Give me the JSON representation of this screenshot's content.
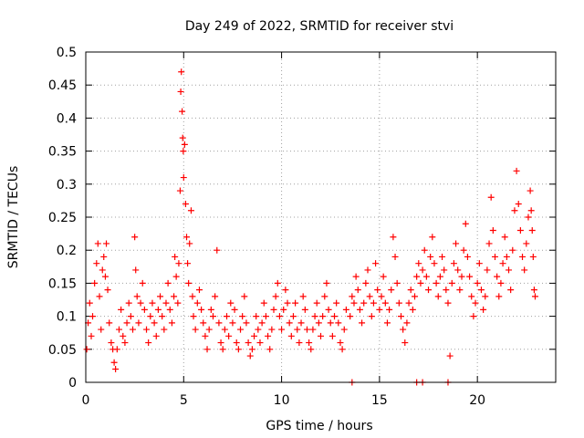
{
  "chart_data": {
    "type": "scatter",
    "title": "Day 249 of 2022, SRMTID for receiver stvi",
    "xlabel": "GPS time / hours",
    "ylabel": "SRMTID / TECUs",
    "xlim": [
      0,
      24
    ],
    "ylim": [
      0,
      0.5
    ],
    "grid": true,
    "marker": "plus",
    "series_color": "#ff0000",
    "x_ticks": [
      {
        "value": 0,
        "label": "0"
      },
      {
        "value": 5,
        "label": "5"
      },
      {
        "value": 10,
        "label": "10"
      },
      {
        "value": 15,
        "label": "15"
      },
      {
        "value": 20,
        "label": "20"
      }
    ],
    "y_ticks": [
      {
        "value": 0,
        "label": "0"
      },
      {
        "value": 0.05,
        "label": "0.05"
      },
      {
        "value": 0.1,
        "label": "0.1"
      },
      {
        "value": 0.15,
        "label": "0.15"
      },
      {
        "value": 0.2,
        "label": "0.2"
      },
      {
        "value": 0.25,
        "label": "0.25"
      },
      {
        "value": 0.3,
        "label": "0.3"
      },
      {
        "value": 0.35,
        "label": "0.35"
      },
      {
        "value": 0.4,
        "label": "0.4"
      },
      {
        "value": 0.45,
        "label": "0.45"
      },
      {
        "value": 0.5,
        "label": "0.5"
      }
    ],
    "points": [
      [
        0.05,
        0.05
      ],
      [
        0.12,
        0.09
      ],
      [
        0.2,
        0.12
      ],
      [
        0.28,
        0.07
      ],
      [
        0.35,
        0.1
      ],
      [
        0.45,
        0.15
      ],
      [
        0.55,
        0.18
      ],
      [
        0.62,
        0.21
      ],
      [
        0.7,
        0.13
      ],
      [
        0.78,
        0.08
      ],
      [
        0.85,
        0.17
      ],
      [
        0.92,
        0.19
      ],
      [
        1.0,
        0.16
      ],
      [
        1.05,
        0.21
      ],
      [
        1.12,
        0.14
      ],
      [
        1.2,
        0.09
      ],
      [
        1.3,
        0.06
      ],
      [
        1.38,
        0.05
      ],
      [
        1.45,
        0.03
      ],
      [
        1.52,
        0.02
      ],
      [
        1.6,
        0.05
      ],
      [
        1.7,
        0.08
      ],
      [
        1.8,
        0.11
      ],
      [
        1.9,
        0.07
      ],
      [
        2.0,
        0.06
      ],
      [
        2.1,
        0.09
      ],
      [
        2.2,
        0.12
      ],
      [
        2.3,
        0.1
      ],
      [
        2.4,
        0.08
      ],
      [
        2.5,
        0.22
      ],
      [
        2.55,
        0.17
      ],
      [
        2.62,
        0.13
      ],
      [
        2.7,
        0.09
      ],
      [
        2.8,
        0.12
      ],
      [
        2.9,
        0.15
      ],
      [
        3.0,
        0.11
      ],
      [
        3.1,
        0.08
      ],
      [
        3.2,
        0.06
      ],
      [
        3.3,
        0.1
      ],
      [
        3.4,
        0.12
      ],
      [
        3.5,
        0.09
      ],
      [
        3.6,
        0.07
      ],
      [
        3.7,
        0.11
      ],
      [
        3.8,
        0.13
      ],
      [
        3.9,
        0.1
      ],
      [
        4.0,
        0.08
      ],
      [
        4.1,
        0.12
      ],
      [
        4.2,
        0.15
      ],
      [
        4.3,
        0.11
      ],
      [
        4.4,
        0.09
      ],
      [
        4.5,
        0.13
      ],
      [
        4.55,
        0.19
      ],
      [
        4.62,
        0.16
      ],
      [
        4.7,
        0.12
      ],
      [
        4.75,
        0.18
      ],
      [
        4.82,
        0.29
      ],
      [
        4.85,
        0.44
      ],
      [
        4.88,
        0.47
      ],
      [
        4.92,
        0.41
      ],
      [
        4.95,
        0.37
      ],
      [
        4.98,
        0.35
      ],
      [
        5.0,
        0.31
      ],
      [
        5.05,
        0.36
      ],
      [
        5.1,
        0.27
      ],
      [
        5.15,
        0.22
      ],
      [
        5.2,
        0.18
      ],
      [
        5.25,
        0.15
      ],
      [
        5.3,
        0.21
      ],
      [
        5.38,
        0.26
      ],
      [
        5.45,
        0.13
      ],
      [
        5.5,
        0.1
      ],
      [
        5.6,
        0.08
      ],
      [
        5.7,
        0.12
      ],
      [
        5.8,
        0.14
      ],
      [
        5.9,
        0.11
      ],
      [
        6.0,
        0.09
      ],
      [
        6.1,
        0.07
      ],
      [
        6.2,
        0.05
      ],
      [
        6.3,
        0.08
      ],
      [
        6.4,
        0.11
      ],
      [
        6.5,
        0.1
      ],
      [
        6.6,
        0.13
      ],
      [
        6.7,
        0.2
      ],
      [
        6.8,
        0.09
      ],
      [
        6.9,
        0.06
      ],
      [
        7.0,
        0.05
      ],
      [
        7.1,
        0.08
      ],
      [
        7.2,
        0.1
      ],
      [
        7.3,
        0.07
      ],
      [
        7.4,
        0.12
      ],
      [
        7.5,
        0.09
      ],
      [
        7.6,
        0.11
      ],
      [
        7.7,
        0.06
      ],
      [
        7.8,
        0.05
      ],
      [
        7.9,
        0.08
      ],
      [
        8.0,
        0.1
      ],
      [
        8.1,
        0.13
      ],
      [
        8.2,
        0.09
      ],
      [
        8.3,
        0.06
      ],
      [
        8.4,
        0.04
      ],
      [
        8.5,
        0.05
      ],
      [
        8.6,
        0.07
      ],
      [
        8.7,
        0.1
      ],
      [
        8.8,
        0.08
      ],
      [
        8.9,
        0.06
      ],
      [
        9.0,
        0.09
      ],
      [
        9.1,
        0.12
      ],
      [
        9.2,
        0.1
      ],
      [
        9.3,
        0.07
      ],
      [
        9.4,
        0.05
      ],
      [
        9.5,
        0.08
      ],
      [
        9.6,
        0.11
      ],
      [
        9.7,
        0.13
      ],
      [
        9.8,
        0.15
      ],
      [
        9.9,
        0.1
      ],
      [
        10.0,
        0.08
      ],
      [
        10.1,
        0.11
      ],
      [
        10.2,
        0.14
      ],
      [
        10.3,
        0.12
      ],
      [
        10.4,
        0.09
      ],
      [
        10.5,
        0.07
      ],
      [
        10.6,
        0.1
      ],
      [
        10.7,
        0.12
      ],
      [
        10.8,
        0.08
      ],
      [
        10.9,
        0.06
      ],
      [
        11.0,
        0.09
      ],
      [
        11.1,
        0.13
      ],
      [
        11.2,
        0.11
      ],
      [
        11.3,
        0.08
      ],
      [
        11.4,
        0.06
      ],
      [
        11.5,
        0.05
      ],
      [
        11.6,
        0.08
      ],
      [
        11.7,
        0.1
      ],
      [
        11.8,
        0.12
      ],
      [
        11.9,
        0.09
      ],
      [
        12.0,
        0.07
      ],
      [
        12.1,
        0.1
      ],
      [
        12.2,
        0.13
      ],
      [
        12.3,
        0.15
      ],
      [
        12.4,
        0.11
      ],
      [
        12.5,
        0.09
      ],
      [
        12.6,
        0.07
      ],
      [
        12.7,
        0.1
      ],
      [
        12.8,
        0.12
      ],
      [
        12.9,
        0.09
      ],
      [
        13.0,
        0.06
      ],
      [
        13.1,
        0.05
      ],
      [
        13.2,
        0.08
      ],
      [
        13.3,
        0.11
      ],
      [
        13.5,
        0.1
      ],
      [
        13.6,
        0.13
      ],
      [
        13.7,
        0.12
      ],
      [
        13.8,
        0.16
      ],
      [
        13.9,
        0.14
      ],
      [
        14.0,
        0.11
      ],
      [
        14.1,
        0.09
      ],
      [
        14.2,
        0.12
      ],
      [
        14.3,
        0.15
      ],
      [
        14.4,
        0.17
      ],
      [
        14.5,
        0.13
      ],
      [
        14.6,
        0.1
      ],
      [
        14.7,
        0.12
      ],
      [
        14.8,
        0.18
      ],
      [
        14.9,
        0.14
      ],
      [
        15.0,
        0.11
      ],
      [
        15.1,
        0.13
      ],
      [
        15.2,
        0.16
      ],
      [
        15.3,
        0.12
      ],
      [
        15.4,
        0.09
      ],
      [
        15.5,
        0.11
      ],
      [
        15.6,
        0.14
      ],
      [
        15.7,
        0.22
      ],
      [
        15.8,
        0.19
      ],
      [
        15.9,
        0.15
      ],
      [
        16.0,
        0.12
      ],
      [
        16.1,
        0.1
      ],
      [
        16.2,
        0.08
      ],
      [
        16.3,
        0.06
      ],
      [
        16.4,
        0.09
      ],
      [
        16.5,
        0.12
      ],
      [
        16.6,
        0.14
      ],
      [
        16.7,
        0.11
      ],
      [
        16.8,
        0.13
      ],
      [
        16.9,
        0.16
      ],
      [
        17.0,
        0.18
      ],
      [
        17.1,
        0.15
      ],
      [
        17.2,
        0.17
      ],
      [
        17.3,
        0.2
      ],
      [
        17.4,
        0.16
      ],
      [
        17.5,
        0.14
      ],
      [
        17.6,
        0.19
      ],
      [
        17.7,
        0.22
      ],
      [
        17.8,
        0.18
      ],
      [
        17.9,
        0.15
      ],
      [
        18.0,
        0.13
      ],
      [
        18.1,
        0.16
      ],
      [
        18.2,
        0.19
      ],
      [
        18.3,
        0.17
      ],
      [
        18.4,
        0.14
      ],
      [
        18.5,
        0.12
      ],
      [
        18.6,
        0.04
      ],
      [
        18.7,
        0.15
      ],
      [
        18.8,
        0.18
      ],
      [
        18.9,
        0.21
      ],
      [
        19.0,
        0.17
      ],
      [
        19.1,
        0.14
      ],
      [
        19.2,
        0.16
      ],
      [
        19.3,
        0.2
      ],
      [
        19.4,
        0.24
      ],
      [
        19.5,
        0.19
      ],
      [
        19.6,
        0.16
      ],
      [
        19.7,
        0.13
      ],
      [
        19.8,
        0.1
      ],
      [
        19.9,
        0.12
      ],
      [
        20.0,
        0.15
      ],
      [
        20.1,
        0.18
      ],
      [
        20.2,
        0.14
      ],
      [
        20.3,
        0.11
      ],
      [
        20.4,
        0.13
      ],
      [
        20.5,
        0.17
      ],
      [
        20.6,
        0.21
      ],
      [
        20.7,
        0.28
      ],
      [
        20.8,
        0.23
      ],
      [
        20.9,
        0.19
      ],
      [
        21.0,
        0.16
      ],
      [
        21.1,
        0.13
      ],
      [
        21.2,
        0.15
      ],
      [
        21.3,
        0.18
      ],
      [
        21.4,
        0.22
      ],
      [
        21.5,
        0.19
      ],
      [
        21.6,
        0.17
      ],
      [
        21.7,
        0.14
      ],
      [
        21.8,
        0.2
      ],
      [
        21.9,
        0.26
      ],
      [
        22.0,
        0.32
      ],
      [
        22.1,
        0.27
      ],
      [
        22.2,
        0.23
      ],
      [
        22.3,
        0.19
      ],
      [
        22.4,
        0.17
      ],
      [
        22.5,
        0.21
      ],
      [
        22.6,
        0.25
      ],
      [
        22.7,
        0.29
      ],
      [
        22.75,
        0.26
      ],
      [
        22.8,
        0.23
      ],
      [
        22.85,
        0.19
      ],
      [
        22.9,
        0.14
      ],
      [
        22.95,
        0.13
      ]
    ],
    "zero_markers": [
      13.6,
      16.9,
      17.2,
      18.5
    ]
  }
}
